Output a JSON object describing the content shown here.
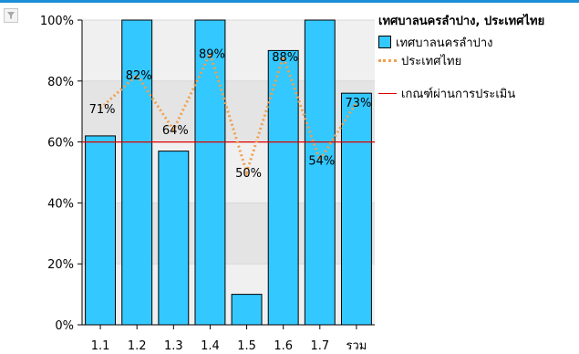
{
  "colors": {
    "bar_fill": "#33C8FF",
    "bar_stroke": "#000000",
    "country_line": "#F0A050",
    "threshold_line": "#E00000",
    "plot_band_dark": "#E4E4E4",
    "plot_band_light": "#F0F0F0",
    "accent_bar": "#1A8FD6"
  },
  "toolbar": {
    "filter_icon": "filter-funnel-icon"
  },
  "chart_data": {
    "type": "bar",
    "categories": [
      "1.1",
      "1.2",
      "1.3",
      "1.4",
      "1.5",
      "1.6",
      "1.7",
      "รวม"
    ],
    "series": [
      {
        "name": "เทศบาลนครลำปาง",
        "type": "bar",
        "values": [
          62,
          100,
          57,
          100,
          10,
          90,
          100,
          76
        ]
      },
      {
        "name": "ประเทศไทย",
        "type": "line",
        "style": "dotted",
        "values": [
          71,
          82,
          64,
          89,
          50,
          88,
          54,
          73
        ],
        "labels": [
          "71%",
          "82%",
          "64%",
          "89%",
          "50%",
          "88%",
          "54%",
          "73%"
        ]
      },
      {
        "name": "เกณฑ์ผ่านการประเมิน",
        "type": "line",
        "style": "solid",
        "value": 60
      }
    ],
    "ylim": [
      0,
      100
    ],
    "yticks": [
      0,
      20,
      40,
      60,
      80,
      100
    ],
    "ytick_labels": [
      "0%",
      "20%",
      "40%",
      "60%",
      "80%",
      "100%"
    ],
    "grid": true,
    "legend_position": "right",
    "legend_title": "เทศบาลนครลำปาง, ประเทศไทย"
  }
}
